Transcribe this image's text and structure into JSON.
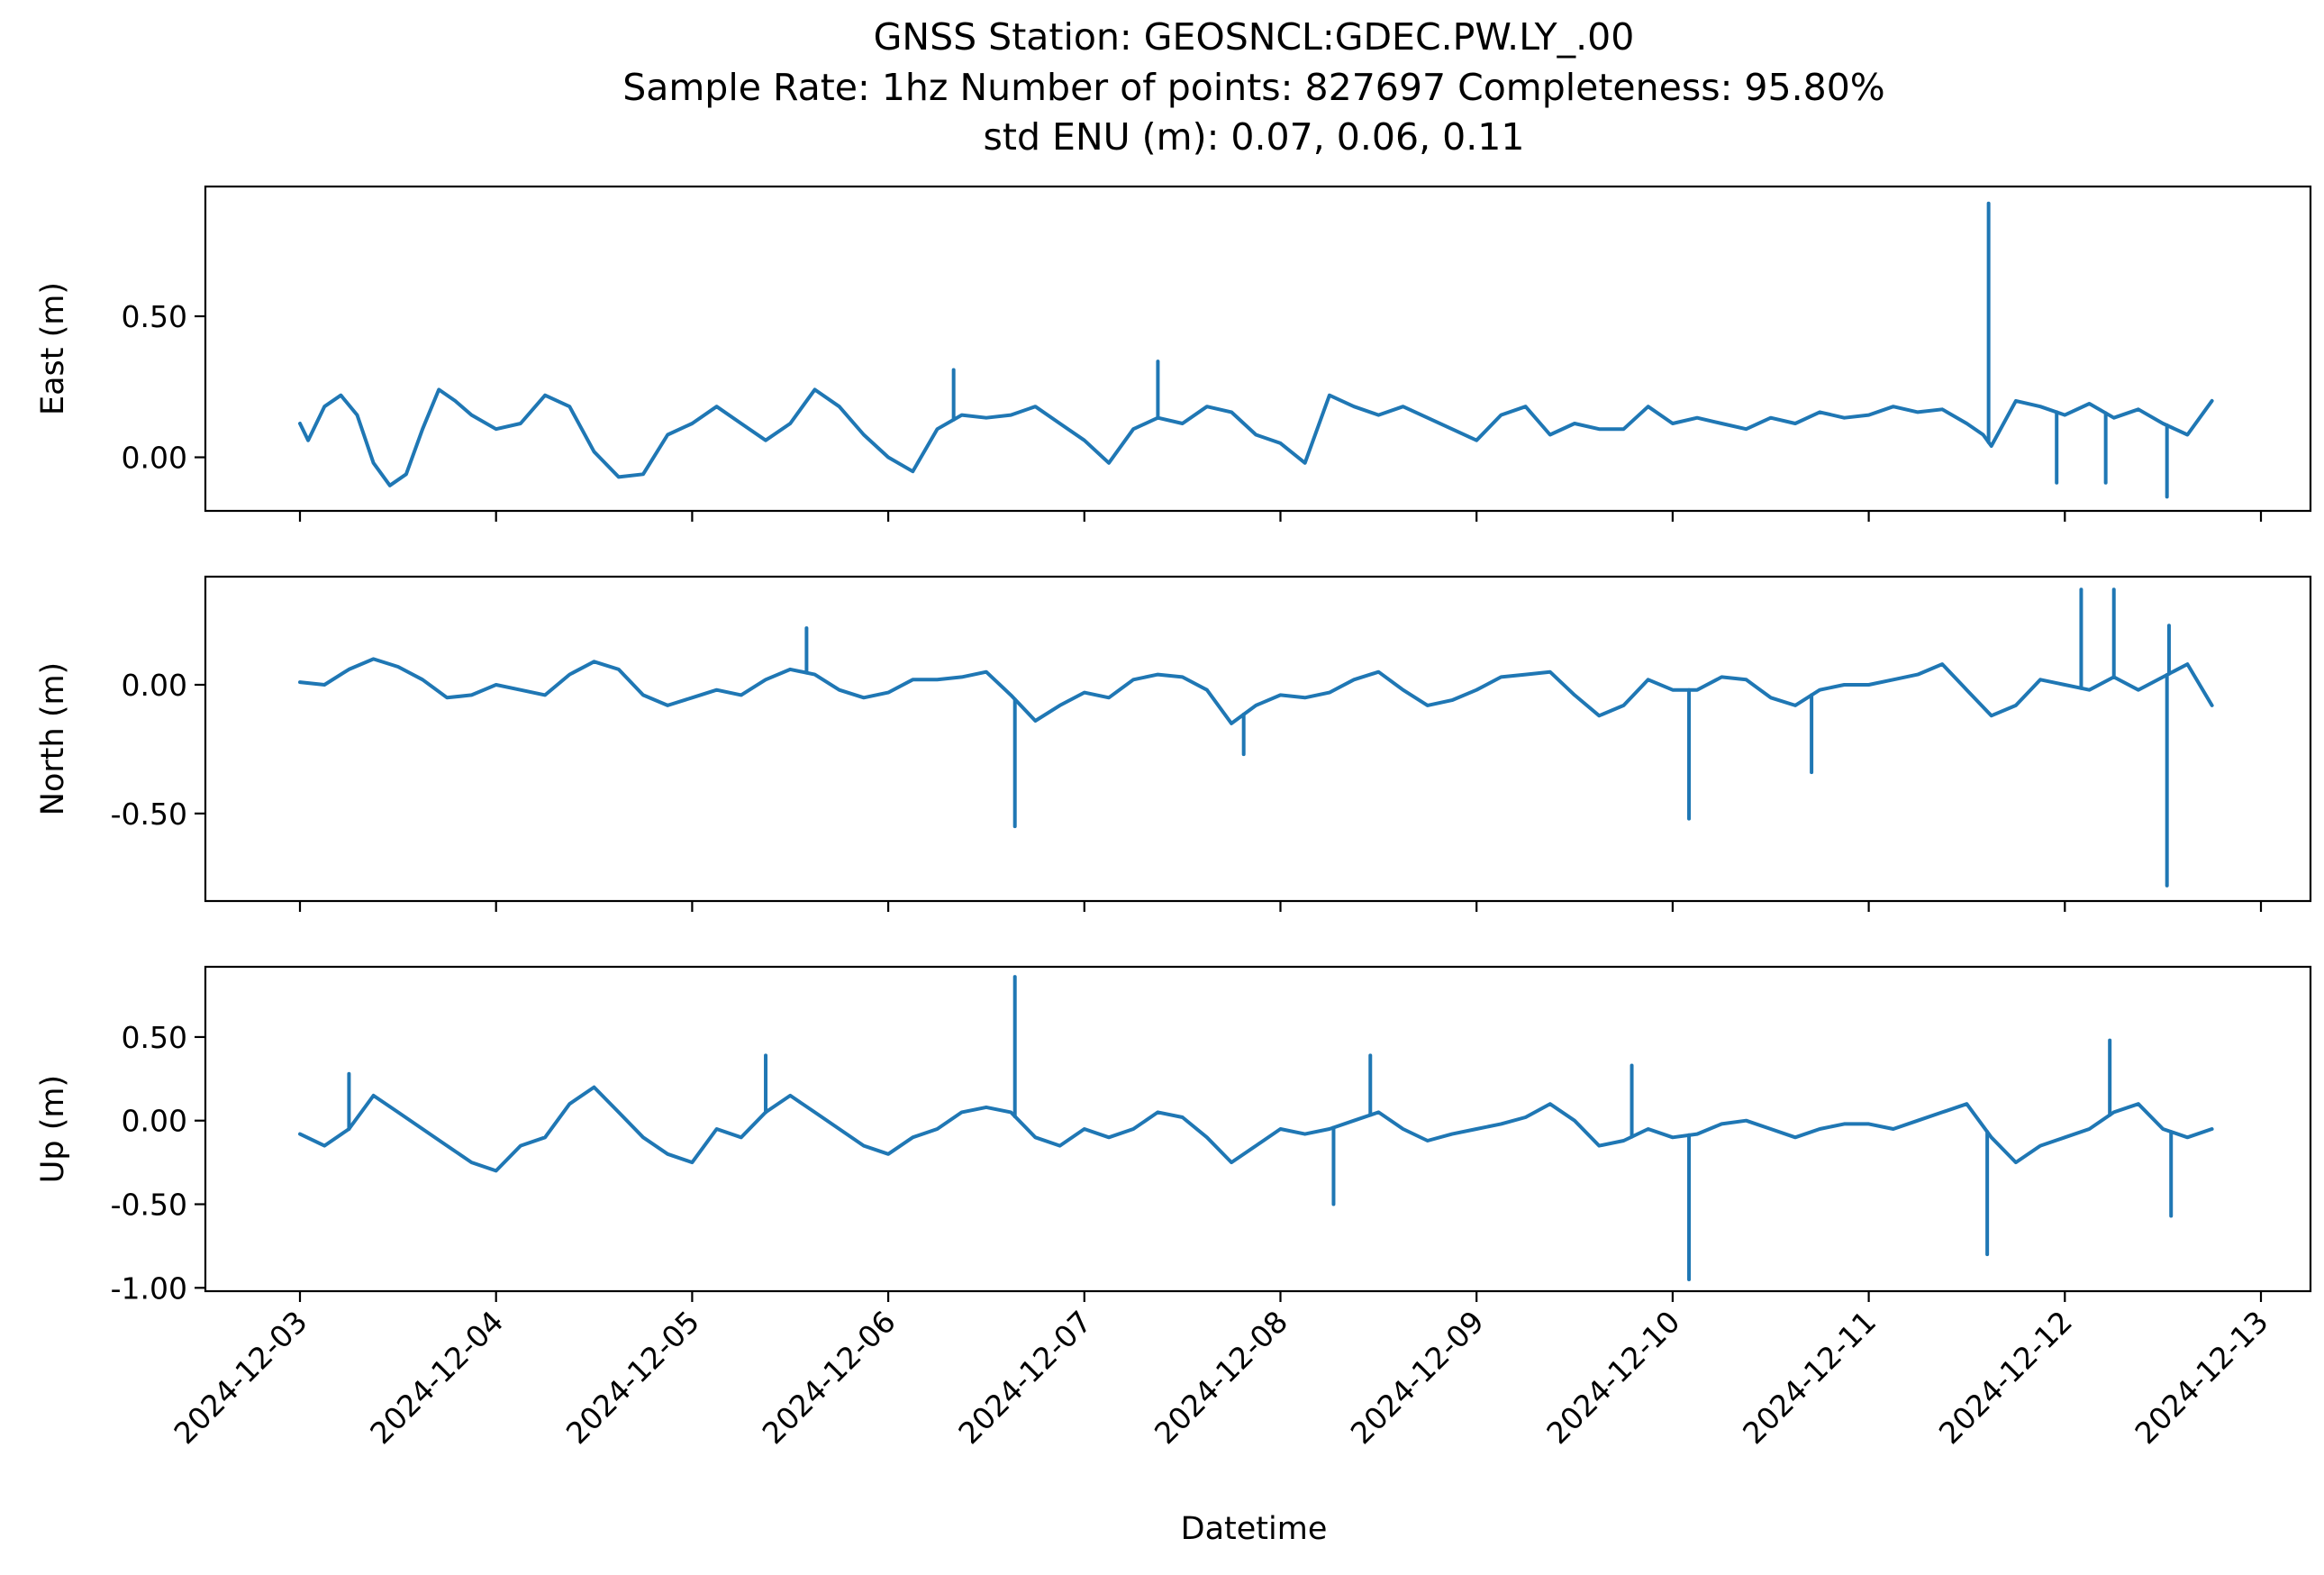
{
  "figure": {
    "title_lines": [
      "GNSS Station: GEOSNCL:GDEC.PW.LY_.00",
      "Sample Rate: 1hz   Number of points: 827697    Completeness:  95.80%",
      "std ENU (m):  0.07, 0.06, 0.11"
    ]
  },
  "chart_data": {
    "type": "line",
    "xlabel": "Datetime",
    "x_range": [
      "2024-12-03",
      "2024-12-13"
    ],
    "x_ticks": [
      "2024-12-03",
      "2024-12-04",
      "2024-12-05",
      "2024-12-06",
      "2024-12-07",
      "2024-12-08",
      "2024-12-09",
      "2024-12-10",
      "2024-12-11",
      "2024-12-12",
      "2024-12-13"
    ],
    "line_color": "#1f77b4",
    "grid": false,
    "panels": [
      {
        "name": "east",
        "ylabel": "East (m)",
        "ylim": [
          -0.19,
          0.96
        ],
        "y_ticks": [
          {
            "v": 0.5,
            "label": "0.50"
          },
          {
            "v": 0.0,
            "label": "0.00"
          }
        ],
        "x": [
          "2024-12-03T00:00",
          "2024-12-03T01:00",
          "2024-12-03T03:00",
          "2024-12-03T05:00",
          "2024-12-03T07:00",
          "2024-12-03T09:00",
          "2024-12-03T11:00",
          "2024-12-03T13:00",
          "2024-12-03T15:00",
          "2024-12-03T17:00",
          "2024-12-03T19:00",
          "2024-12-03T21:00",
          "2024-12-04T00:00",
          "2024-12-04T03:00",
          "2024-12-04T06:00",
          "2024-12-04T09:00",
          "2024-12-04T12:00",
          "2024-12-04T15:00",
          "2024-12-04T18:00",
          "2024-12-04T21:00",
          "2024-12-05T00:00",
          "2024-12-05T03:00",
          "2024-12-05T06:00",
          "2024-12-05T09:00",
          "2024-12-05T12:00",
          "2024-12-05T15:00",
          "2024-12-05T18:00",
          "2024-12-05T21:00",
          "2024-12-06T00:00",
          "2024-12-06T03:00",
          "2024-12-06T06:00",
          "2024-12-06T09:00",
          "2024-12-06T12:00",
          "2024-12-06T15:00",
          "2024-12-06T18:00",
          "2024-12-06T21:00",
          "2024-12-07T00:00",
          "2024-12-07T03:00",
          "2024-12-07T06:00",
          "2024-12-07T09:00",
          "2024-12-07T12:00",
          "2024-12-07T15:00",
          "2024-12-07T18:00",
          "2024-12-07T21:00",
          "2024-12-08T00:00",
          "2024-12-08T03:00",
          "2024-12-08T06:00",
          "2024-12-08T09:00",
          "2024-12-08T12:00",
          "2024-12-08T15:00",
          "2024-12-08T18:00",
          "2024-12-08T21:00",
          "2024-12-09T00:00",
          "2024-12-09T03:00",
          "2024-12-09T06:00",
          "2024-12-09T09:00",
          "2024-12-09T12:00",
          "2024-12-09T15:00",
          "2024-12-09T18:00",
          "2024-12-09T21:00",
          "2024-12-10T00:00",
          "2024-12-10T03:00",
          "2024-12-10T06:00",
          "2024-12-10T09:00",
          "2024-12-10T12:00",
          "2024-12-10T15:00",
          "2024-12-10T18:00",
          "2024-12-10T21:00",
          "2024-12-11T00:00",
          "2024-12-11T03:00",
          "2024-12-11T06:00",
          "2024-12-11T09:00",
          "2024-12-11T12:00",
          "2024-12-11T14:00",
          "2024-12-11T15:00",
          "2024-12-11T18:00",
          "2024-12-11T21:00",
          "2024-12-12T00:00",
          "2024-12-12T03:00",
          "2024-12-12T06:00",
          "2024-12-12T09:00",
          "2024-12-12T12:00",
          "2024-12-12T15:00",
          "2024-12-12T18:00"
        ],
        "values": [
          0.12,
          0.06,
          0.18,
          0.22,
          0.15,
          -0.02,
          -0.1,
          -0.06,
          0.1,
          0.24,
          0.2,
          0.15,
          0.1,
          0.12,
          0.22,
          0.18,
          0.02,
          -0.07,
          -0.06,
          0.08,
          0.12,
          0.18,
          0.12,
          0.06,
          0.12,
          0.24,
          0.18,
          0.08,
          0.0,
          -0.05,
          0.1,
          0.15,
          0.14,
          0.15,
          0.18,
          0.12,
          0.06,
          -0.02,
          0.1,
          0.14,
          0.12,
          0.18,
          0.16,
          0.08,
          0.05,
          -0.02,
          0.22,
          0.18,
          0.15,
          0.18,
          0.14,
          0.1,
          0.06,
          0.15,
          0.18,
          0.08,
          0.12,
          0.1,
          0.1,
          0.18,
          0.12,
          0.14,
          0.12,
          0.1,
          0.14,
          0.12,
          0.16,
          0.14,
          0.15,
          0.18,
          0.16,
          0.17,
          0.12,
          0.08,
          0.04,
          0.2,
          0.18,
          0.15,
          0.19,
          0.14,
          0.17,
          0.12,
          0.08,
          0.2
        ],
        "spikes": [
          {
            "x": "2024-12-11T14:40",
            "y": 0.9
          },
          {
            "x": "2024-12-11T23:00",
            "y": -0.09
          },
          {
            "x": "2024-12-12T05:00",
            "y": -0.09
          },
          {
            "x": "2024-12-12T12:30",
            "y": -0.14
          },
          {
            "x": "2024-12-07T09:00",
            "y": 0.34
          },
          {
            "x": "2024-12-06T08:00",
            "y": 0.31
          }
        ]
      },
      {
        "name": "north",
        "ylabel": "North (m)",
        "ylim": [
          -0.84,
          0.42
        ],
        "y_ticks": [
          {
            "v": 0.0,
            "label": "0.00"
          },
          {
            "v": -0.5,
            "label": "-0.50"
          }
        ],
        "x": [
          "2024-12-03T00:00",
          "2024-12-03T03:00",
          "2024-12-03T06:00",
          "2024-12-03T09:00",
          "2024-12-03T12:00",
          "2024-12-03T15:00",
          "2024-12-03T18:00",
          "2024-12-03T21:00",
          "2024-12-04T00:00",
          "2024-12-04T03:00",
          "2024-12-04T06:00",
          "2024-12-04T09:00",
          "2024-12-04T12:00",
          "2024-12-04T15:00",
          "2024-12-04T18:00",
          "2024-12-04T21:00",
          "2024-12-05T00:00",
          "2024-12-05T03:00",
          "2024-12-05T06:00",
          "2024-12-05T09:00",
          "2024-12-05T12:00",
          "2024-12-05T15:00",
          "2024-12-05T18:00",
          "2024-12-05T21:00",
          "2024-12-06T00:00",
          "2024-12-06T03:00",
          "2024-12-06T06:00",
          "2024-12-06T09:00",
          "2024-12-06T12:00",
          "2024-12-06T15:00",
          "2024-12-06T18:00",
          "2024-12-06T21:00",
          "2024-12-07T00:00",
          "2024-12-07T03:00",
          "2024-12-07T06:00",
          "2024-12-07T09:00",
          "2024-12-07T12:00",
          "2024-12-07T15:00",
          "2024-12-07T18:00",
          "2024-12-07T21:00",
          "2024-12-08T00:00",
          "2024-12-08T03:00",
          "2024-12-08T06:00",
          "2024-12-08T09:00",
          "2024-12-08T12:00",
          "2024-12-08T15:00",
          "2024-12-08T18:00",
          "2024-12-08T21:00",
          "2024-12-09T00:00",
          "2024-12-09T03:00",
          "2024-12-09T06:00",
          "2024-12-09T09:00",
          "2024-12-09T12:00",
          "2024-12-09T15:00",
          "2024-12-09T18:00",
          "2024-12-09T21:00",
          "2024-12-10T00:00",
          "2024-12-10T03:00",
          "2024-12-10T06:00",
          "2024-12-10T09:00",
          "2024-12-10T12:00",
          "2024-12-10T15:00",
          "2024-12-10T18:00",
          "2024-12-10T21:00",
          "2024-12-11T00:00",
          "2024-12-11T03:00",
          "2024-12-11T06:00",
          "2024-12-11T09:00",
          "2024-12-11T12:00",
          "2024-12-11T15:00",
          "2024-12-11T18:00",
          "2024-12-11T21:00",
          "2024-12-12T00:00",
          "2024-12-12T03:00",
          "2024-12-12T06:00",
          "2024-12-12T09:00",
          "2024-12-12T12:00",
          "2024-12-12T15:00",
          "2024-12-12T18:00"
        ],
        "values": [
          0.01,
          0.0,
          0.06,
          0.1,
          0.07,
          0.02,
          -0.05,
          -0.04,
          0.0,
          -0.02,
          -0.04,
          0.04,
          0.09,
          0.06,
          -0.04,
          -0.08,
          -0.05,
          -0.02,
          -0.04,
          0.02,
          0.06,
          0.04,
          -0.02,
          -0.05,
          -0.03,
          0.02,
          0.02,
          0.03,
          0.05,
          -0.04,
          -0.14,
          -0.08,
          -0.03,
          -0.05,
          0.02,
          0.04,
          0.03,
          -0.02,
          -0.15,
          -0.08,
          -0.04,
          -0.05,
          -0.03,
          0.02,
          0.05,
          -0.02,
          -0.08,
          -0.06,
          -0.02,
          0.03,
          0.04,
          0.05,
          -0.04,
          -0.12,
          -0.08,
          0.02,
          -0.02,
          -0.02,
          0.03,
          0.02,
          -0.05,
          -0.08,
          -0.02,
          0.0,
          0.0,
          0.02,
          0.04,
          0.08,
          -0.02,
          -0.12,
          -0.08,
          0.02,
          0.0,
          -0.02,
          0.03,
          -0.02,
          0.03,
          0.08,
          -0.08
        ],
        "spikes": [
          {
            "x": "2024-12-06T15:30",
            "y": -0.55
          },
          {
            "x": "2024-12-10T02:00",
            "y": -0.52
          },
          {
            "x": "2024-12-12T12:30",
            "y": -0.78
          },
          {
            "x": "2024-12-12T02:00",
            "y": 0.37
          },
          {
            "x": "2024-12-12T06:00",
            "y": 0.37
          },
          {
            "x": "2024-12-12T12:45",
            "y": 0.23
          },
          {
            "x": "2024-12-05T14:00",
            "y": 0.22
          },
          {
            "x": "2024-12-10T17:00",
            "y": -0.34
          },
          {
            "x": "2024-12-07T19:30",
            "y": -0.27
          }
        ]
      },
      {
        "name": "up",
        "ylabel": "Up (m)",
        "ylim": [
          -1.02,
          0.92
        ],
        "y_ticks": [
          {
            "v": 0.5,
            "label": "0.50"
          },
          {
            "v": 0.0,
            "label": "0.00"
          },
          {
            "v": -0.5,
            "label": "-0.50"
          },
          {
            "v": -1.0,
            "label": "-1.00"
          }
        ],
        "x": [
          "2024-12-03T00:00",
          "2024-12-03T03:00",
          "2024-12-03T06:00",
          "2024-12-03T09:00",
          "2024-12-03T12:00",
          "2024-12-03T15:00",
          "2024-12-03T18:00",
          "2024-12-03T21:00",
          "2024-12-04T00:00",
          "2024-12-04T03:00",
          "2024-12-04T06:00",
          "2024-12-04T09:00",
          "2024-12-04T12:00",
          "2024-12-04T15:00",
          "2024-12-04T18:00",
          "2024-12-04T21:00",
          "2024-12-05T00:00",
          "2024-12-05T03:00",
          "2024-12-05T06:00",
          "2024-12-05T09:00",
          "2024-12-05T12:00",
          "2024-12-05T15:00",
          "2024-12-05T18:00",
          "2024-12-05T21:00",
          "2024-12-06T00:00",
          "2024-12-06T03:00",
          "2024-12-06T06:00",
          "2024-12-06T09:00",
          "2024-12-06T12:00",
          "2024-12-06T15:00",
          "2024-12-06T18:00",
          "2024-12-06T21:00",
          "2024-12-07T00:00",
          "2024-12-07T03:00",
          "2024-12-07T06:00",
          "2024-12-07T09:00",
          "2024-12-07T12:00",
          "2024-12-07T15:00",
          "2024-12-07T18:00",
          "2024-12-07T21:00",
          "2024-12-08T00:00",
          "2024-12-08T03:00",
          "2024-12-08T06:00",
          "2024-12-08T09:00",
          "2024-12-08T12:00",
          "2024-12-08T15:00",
          "2024-12-08T18:00",
          "2024-12-08T21:00",
          "2024-12-09T00:00",
          "2024-12-09T03:00",
          "2024-12-09T06:00",
          "2024-12-09T09:00",
          "2024-12-09T12:00",
          "2024-12-09T15:00",
          "2024-12-09T18:00",
          "2024-12-09T21:00",
          "2024-12-10T00:00",
          "2024-12-10T03:00",
          "2024-12-10T06:00",
          "2024-12-10T09:00",
          "2024-12-10T12:00",
          "2024-12-10T15:00",
          "2024-12-10T18:00",
          "2024-12-10T21:00",
          "2024-12-11T00:00",
          "2024-12-11T03:00",
          "2024-12-11T06:00",
          "2024-12-11T09:00",
          "2024-12-11T12:00",
          "2024-12-11T15:00",
          "2024-12-11T18:00",
          "2024-12-11T21:00",
          "2024-12-12T00:00",
          "2024-12-12T03:00",
          "2024-12-12T06:00",
          "2024-12-12T09:00",
          "2024-12-12T12:00",
          "2024-12-12T15:00",
          "2024-12-12T18:00"
        ],
        "values": [
          -0.08,
          -0.15,
          -0.05,
          0.15,
          0.05,
          -0.05,
          -0.15,
          -0.25,
          -0.3,
          -0.15,
          -0.1,
          0.1,
          0.2,
          0.05,
          -0.1,
          -0.2,
          -0.25,
          -0.05,
          -0.1,
          0.05,
          0.15,
          0.05,
          -0.05,
          -0.15,
          -0.2,
          -0.1,
          -0.05,
          0.05,
          0.08,
          0.05,
          -0.1,
          -0.15,
          -0.05,
          -0.1,
          -0.05,
          0.05,
          0.02,
          -0.1,
          -0.25,
          -0.15,
          -0.05,
          -0.08,
          -0.05,
          0.0,
          0.05,
          -0.05,
          -0.12,
          -0.08,
          -0.05,
          -0.02,
          0.02,
          0.1,
          0.0,
          -0.15,
          -0.12,
          -0.05,
          -0.1,
          -0.08,
          -0.02,
          0.0,
          -0.05,
          -0.1,
          -0.05,
          -0.02,
          -0.02,
          -0.05,
          0.0,
          0.05,
          0.1,
          -0.1,
          -0.25,
          -0.15,
          -0.1,
          -0.05,
          0.05,
          0.1,
          -0.05,
          -0.1,
          -0.05
        ],
        "spikes": [
          {
            "x": "2024-12-06T15:30",
            "y": 0.86
          },
          {
            "x": "2024-12-10T02:00",
            "y": -0.95
          },
          {
            "x": "2024-12-11T14:30",
            "y": -0.8
          },
          {
            "x": "2024-12-12T05:30",
            "y": 0.48
          },
          {
            "x": "2024-12-05T09:00",
            "y": 0.39
          },
          {
            "x": "2024-12-08T11:00",
            "y": 0.39
          },
          {
            "x": "2024-12-09T19:00",
            "y": 0.33
          },
          {
            "x": "2024-12-12T13:00",
            "y": -0.57
          },
          {
            "x": "2024-12-08T06:30",
            "y": -0.5
          },
          {
            "x": "2024-12-03T06:00",
            "y": 0.28
          }
        ]
      }
    ]
  }
}
